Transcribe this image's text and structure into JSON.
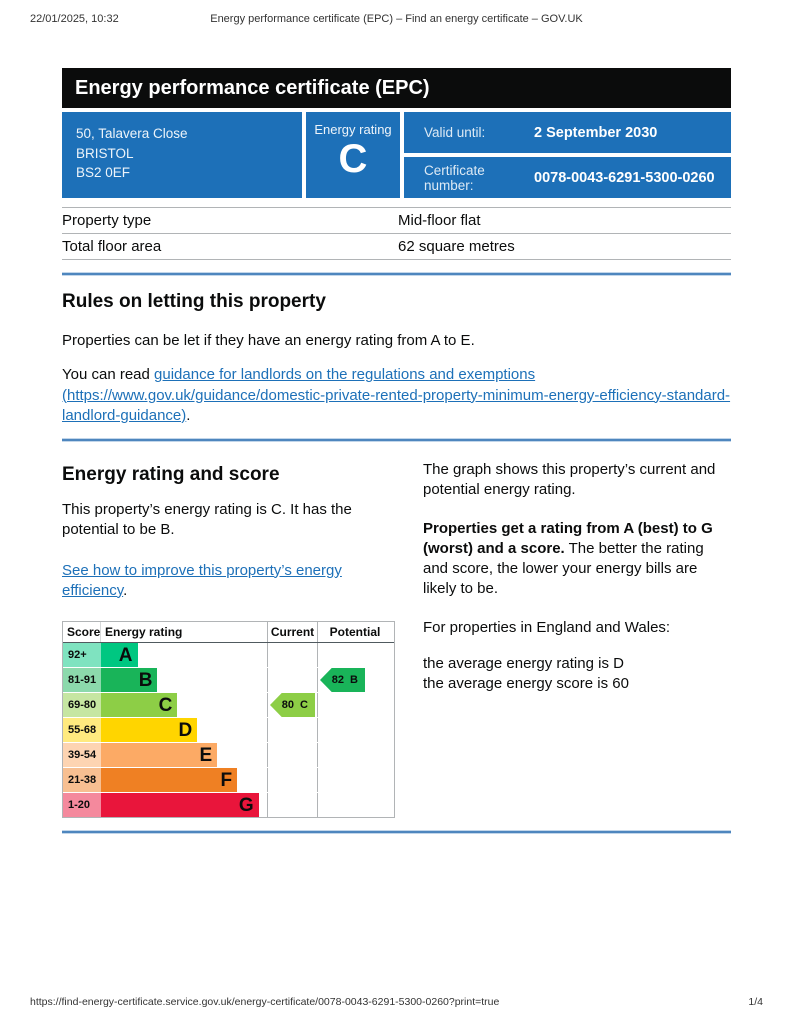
{
  "colors": {
    "accent_blue": "#1d70b8",
    "banner_black": "#0b0c0c",
    "link_blue": "#1d70b8",
    "section_break_blue": "#4e86be"
  },
  "print_header": {
    "datetime": "22/01/2025, 10:32",
    "title": "Energy performance certificate (EPC) – Find an energy certificate – GOV.UK"
  },
  "banner": {
    "title": "Energy performance certificate (EPC)"
  },
  "summary": {
    "address_lines": [
      "50, Talavera Close",
      "BRISTOL",
      "BS2 0EF"
    ],
    "rating_label": "Energy rating",
    "rating_value": "C",
    "valid_until_label": "Valid until:",
    "valid_until_value": "2 September 2030",
    "certificate_number_label": "Certificate number:",
    "certificate_number_value": "0078-0043-6291-5300-0260"
  },
  "property_table": {
    "rows": [
      {
        "label": "Property type",
        "value": "Mid-floor flat"
      },
      {
        "label": "Total floor area",
        "value": "62 square metres"
      }
    ]
  },
  "letting_rules": {
    "heading": "Rules on letting this property",
    "paragraph": "Properties can be let if they have an energy rating from A to E.",
    "link_prefix": "You can read ",
    "link_text": "guidance for landlords on the regulations and exemptions (https://www.gov.uk/guidance/domestic-private-rented-property-minimum-energy-efficiency-standard-landlord-guidance)",
    "link_suffix": "."
  },
  "rating_section": {
    "heading": "Energy rating and score",
    "paragraph": "This property’s energy rating is C. It has the potential to be B.",
    "link_text": "See how to improve this property’s energy efficiency",
    "link_suffix": ".",
    "right": {
      "p1": "The graph shows this property’s current and potential energy rating.",
      "p2_bold": "Properties get a rating from A (best) to G (worst) and a score.",
      "p2_rest": " The better the rating and score, the lower your energy bills are likely to be.",
      "p3": "For properties in England and Wales:",
      "p4_line1": "the average energy rating is D",
      "p4_line2": "the average energy score is 60"
    }
  },
  "chart_data": {
    "type": "bar",
    "subtype": "epc-rating-graph",
    "headers": {
      "score": "Score",
      "rating": "Energy rating",
      "current": "Current",
      "potential": "Potential"
    },
    "bands": [
      {
        "score": "92+",
        "letter": "A",
        "color": "#00c781",
        "tint": "#7fe3c0",
        "width_pct": 22
      },
      {
        "score": "81-91",
        "letter": "B",
        "color": "#19b459",
        "tint": "#8cd9ac",
        "width_pct": 34
      },
      {
        "score": "69-80",
        "letter": "C",
        "color": "#8dce46",
        "tint": "#c6e6a2",
        "width_pct": 46
      },
      {
        "score": "55-68",
        "letter": "D",
        "color": "#ffd500",
        "tint": "#ffea7f",
        "width_pct": 58
      },
      {
        "score": "39-54",
        "letter": "E",
        "color": "#fcaa65",
        "tint": "#fdd4b2",
        "width_pct": 70
      },
      {
        "score": "21-38",
        "letter": "F",
        "color": "#ef8023",
        "tint": "#f7bf91",
        "width_pct": 82
      },
      {
        "score": "1-20",
        "letter": "G",
        "color": "#e9153b",
        "tint": "#f4899d",
        "width_pct": 95
      }
    ],
    "current": {
      "score": 80,
      "band": "C",
      "color": "#8dce46"
    },
    "potential": {
      "score": 82,
      "band": "B",
      "color": "#19b459"
    }
  },
  "print_footer": {
    "url": "https://find-energy-certificate.service.gov.uk/energy-certificate/0078-0043-6291-5300-0260?print=true",
    "page": "1/4"
  }
}
